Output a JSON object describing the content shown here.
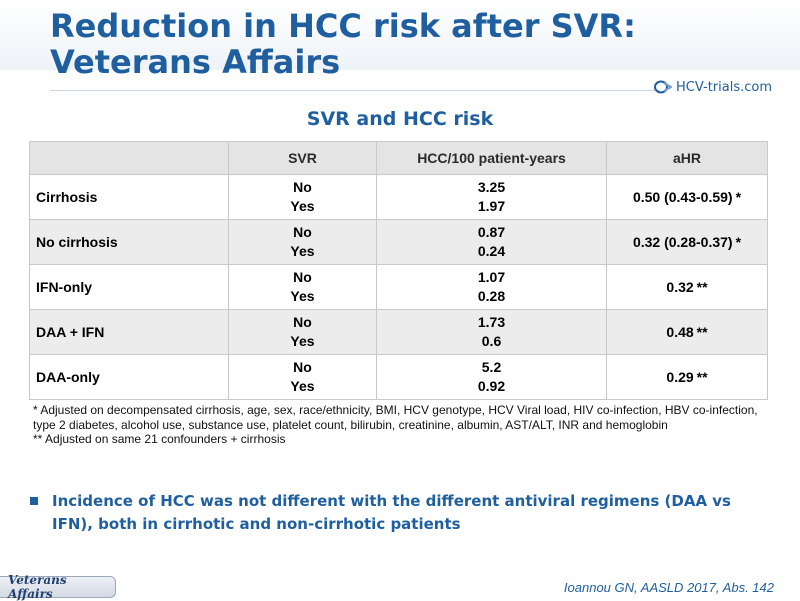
{
  "title": {
    "line1": "Reduction in HCC risk after SVR:",
    "line2": "Veterans Affairs"
  },
  "logo": {
    "text": "HCV-trials.com"
  },
  "subtitle": "SVR and HCC risk",
  "table": {
    "headers": [
      "",
      "SVR",
      "HCC/100 patient-years",
      "aHR"
    ],
    "rows": [
      {
        "label": "Cirrhosis",
        "svr": [
          "No",
          "Yes"
        ],
        "hcc": [
          "3.25",
          "1.97"
        ],
        "ahr": "0.50 (0.43-0.59)",
        "stars": "*"
      },
      {
        "label": "No cirrhosis",
        "svr": [
          "No",
          "Yes"
        ],
        "hcc": [
          "0.87",
          "0.24"
        ],
        "ahr": "0.32 (0.28-0.37)",
        "stars": "*"
      },
      {
        "label": "IFN-only",
        "svr": [
          "No",
          "Yes"
        ],
        "hcc": [
          "1.07",
          "0.28"
        ],
        "ahr": "0.32",
        "stars": "**"
      },
      {
        "label": "DAA + IFN",
        "svr": [
          "No",
          "Yes"
        ],
        "hcc": [
          "1.73",
          "0.6"
        ],
        "ahr": "0.48",
        "stars": "**"
      },
      {
        "label": "DAA-only",
        "svr": [
          "No",
          "Yes"
        ],
        "hcc": [
          "5.2",
          "0.92"
        ],
        "ahr": "0.29",
        "stars": "**"
      }
    ]
  },
  "footnotes": {
    "note1": "* Adjusted on decompensated cirrhosis, age, sex, race/ethnicity, BMI, HCV genotype, HCV Viral load, HIV co-infection, HBV co-infection, type 2 diabetes, alcohol use, substance use, platelet count, bilirubin, creatinine, albumin, AST/ALT, INR and hemoglobin",
    "note2": "** Adjusted on same 21 confounders + cirrhosis"
  },
  "bullet": "Incidence of HCC was not different with the different antiviral regimens (DAA vs IFN), both in cirrhotic and non-cirrhotic patients",
  "badge": "Veterans Affairs",
  "citation": "Ioannou GN, AASLD 2017, Abs. 142",
  "colors": {
    "accent": "#1f5f9f",
    "header_bg": "#e4e4e4",
    "stripe_bg": "#ececec"
  },
  "icons": {
    "logo": "hcv-trials-logo-icon",
    "bullet": "square-bullet-icon"
  }
}
